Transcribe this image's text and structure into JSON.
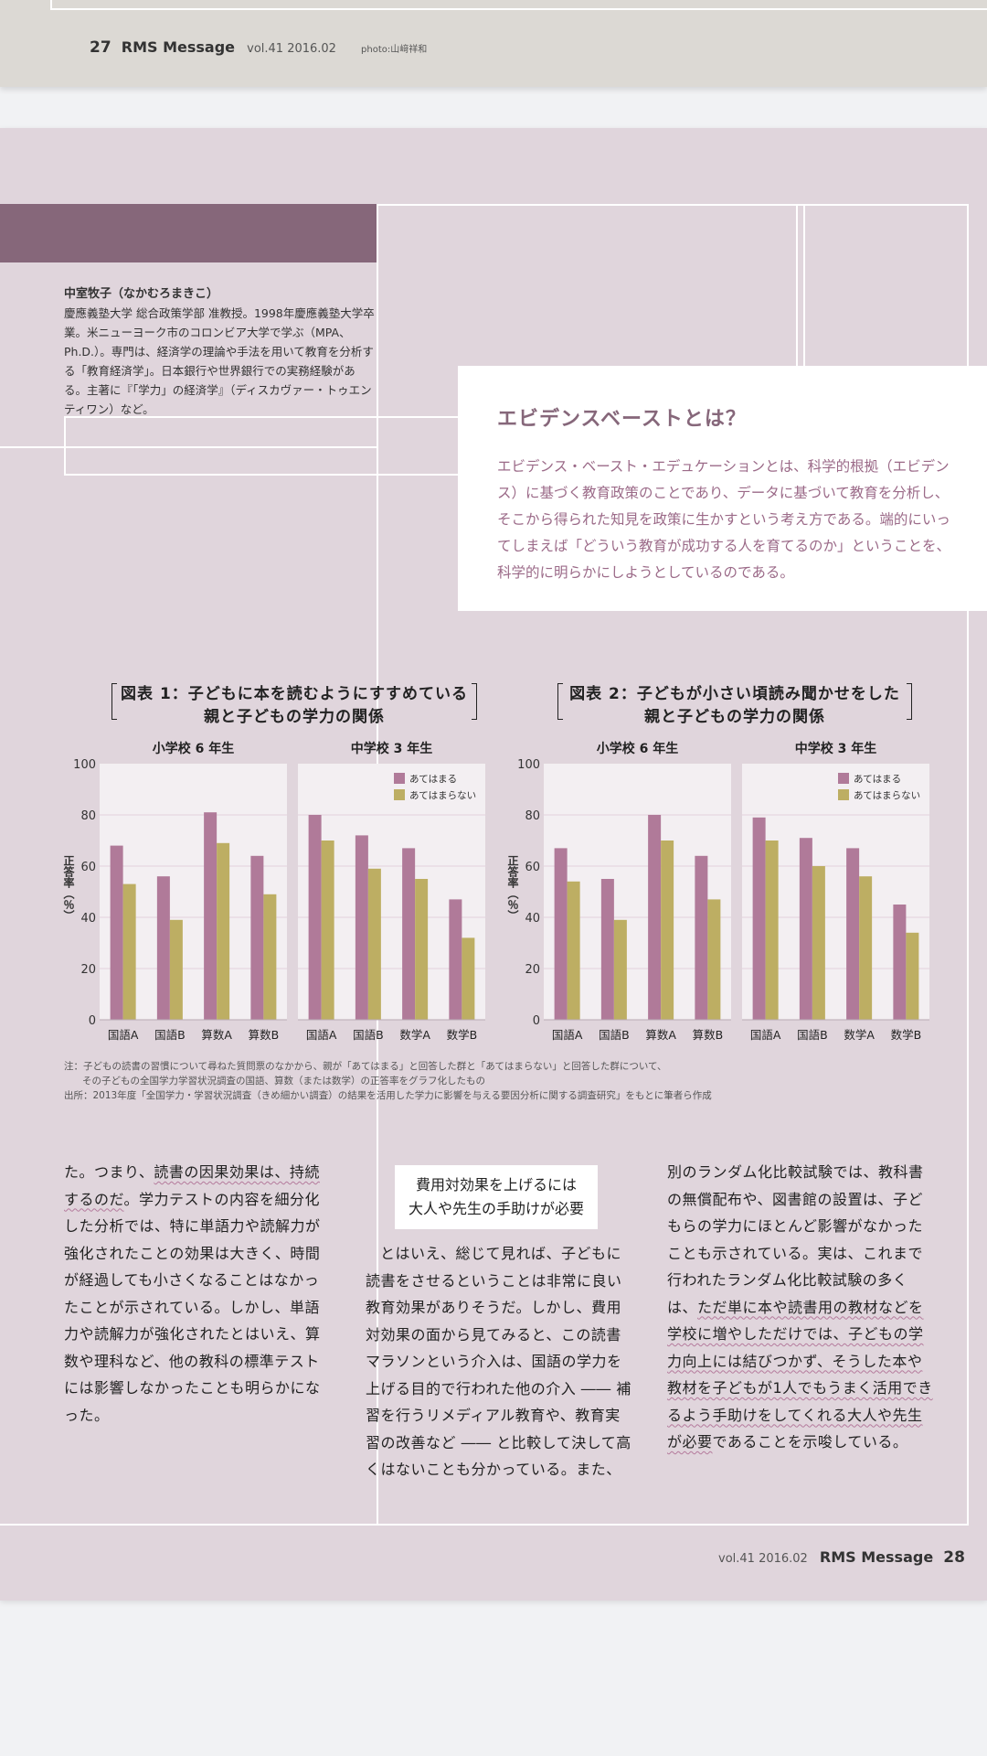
{
  "prev_footer": {
    "page": "27",
    "brand": "RMS Message",
    "vol": "vol.41 2016.02",
    "photo": "photo:山﨑祥和"
  },
  "author": {
    "name": "中室牧子（なかむろまきこ）",
    "bio": "慶應義塾大学 総合政策学部 准教授。1998年慶應義塾大学卒業。米ニューヨーク市のコロンビア大学で学ぶ（MPA、Ph.D.）。専門は、経済学の理論や手法を用いて教育を分析する「教育経済学」。日本銀行や世界銀行での実務経験がある。主著に『「学力」の経済学』（ディスカヴァー・トゥエンティワン）など。"
  },
  "evidence": {
    "title": "エビデンスベーストとは？",
    "body": "エビデンス・ベースト・エデュケーションとは、科学的根拠（エビデンス）に基づく教育政策のことであり、データに基づいて教育を分析し、そこから得られた知見を政策に生かすという考え方である。端的にいってしまえば「どういう教育が成功する人を育てるのか」ということを、科学的に明らかにしようとしているのである。"
  },
  "colors": {
    "yes": "#b07a99",
    "no": "#bdae63",
    "panel": "#f3eff2",
    "accent": "#86677a"
  },
  "chart_data": [
    {
      "type": "bar",
      "title_line1": "図表 1：子どもに本を読むようにすすめている",
      "title_line2": "親と子どもの学力の関係",
      "ylabel": "正答率（％）",
      "ylim": [
        0,
        100
      ],
      "yticks": [
        0,
        20,
        40,
        60,
        80,
        100
      ],
      "legend": [
        "あてはまる",
        "あてはまらない"
      ],
      "panels": [
        {
          "title": "小学校 6 年生",
          "categories": [
            "国語A",
            "国語B",
            "算数A",
            "算数B"
          ],
          "yes": [
            68,
            56,
            81,
            64
          ],
          "no": [
            53,
            39,
            69,
            49
          ]
        },
        {
          "title": "中学校 3 年生",
          "categories": [
            "国語A",
            "国語B",
            "数学A",
            "数学B"
          ],
          "yes": [
            80,
            72,
            67,
            47
          ],
          "no": [
            70,
            59,
            55,
            32
          ]
        }
      ]
    },
    {
      "type": "bar",
      "title_line1": "図表 2：子どもが小さい頃読み聞かせをした",
      "title_line2": "親と子どもの学力の関係",
      "ylabel": "正答率（％）",
      "ylim": [
        0,
        100
      ],
      "yticks": [
        0,
        20,
        40,
        60,
        80,
        100
      ],
      "legend": [
        "あてはまる",
        "あてはまらない"
      ],
      "panels": [
        {
          "title": "小学校 6 年生",
          "categories": [
            "国語A",
            "国語B",
            "算数A",
            "算数B"
          ],
          "yes": [
            67,
            55,
            80,
            64
          ],
          "no": [
            54,
            39,
            70,
            47
          ]
        },
        {
          "title": "中学校 3 年生",
          "categories": [
            "国語A",
            "国語B",
            "数学A",
            "数学B"
          ],
          "yes": [
            79,
            71,
            67,
            45
          ],
          "no": [
            70,
            60,
            56,
            34
          ]
        }
      ]
    }
  ],
  "notes": [
    "注：子どもの読書の習慣について尋ねた質問票のなかから、親が「あてはまる」と回答した群と「あてはまらない」と回答した群について、",
    "その子どもの全国学力学習状況調査の国語、算数（または数学）の正答率をグラフ化したもの",
    "出所：2013年度「全国学力・学習状況調査（きめ細かい調査）の結果を活用した学力に影響を与える要因分析に関する調査研究」をもとに筆者ら作成"
  ],
  "columns": {
    "col1": {
      "p1": "た。つまり、",
      "p1_hl1": "読書の因果効果は、持続",
      "p1_hl2": "するのだ",
      "p1_rest": "。学力テストの内容を細分化した分析では、特に単語力や読解力が強化されたことの効果は大きく、時間が経過しても小さくなることはなかったことが示されている。しかし、単語力や読解力が強化されたとはいえ、算数や理科など、他の教科の標準テストには影響しなかったことも明らかになった。"
    },
    "subhead_line1": "費用対効果を上げるには",
    "subhead_line2": "大人や先生の手助けが必要",
    "col2": "とはいえ、総じて見れば、子どもに読書をさせるということは非常に良い教育効果がありそうだ。しかし、費用対効果の面から見てみると、この読書マラソンという介入は、国語の学力を上げる目的で行われた他の介入 ―― 補習を行うリメディアル教育や、教育実習の改善など ―― と比較して決して高くはないことも分かっている。また、",
    "col3": {
      "p1": "別のランダム化比較試験では、教科書の無償配布や、図書館の設置は、子どもらの学力にほとんど影響がなかったことも示されている。実は、これまで行われたランダム化比較試験の多くは、",
      "hl": "ただ単に本や読書用の教材などを学校に増やしただけでは、子どもの学力向上には結びつかず、そうした本や教材を子どもが1人でもうまく活用できるよう手助けをしてくれる大人や先生が必要",
      "rest": "であることを示唆している。"
    }
  },
  "footer": {
    "vol": "vol.41 2016.02",
    "brand": "RMS Message",
    "page": "28"
  }
}
